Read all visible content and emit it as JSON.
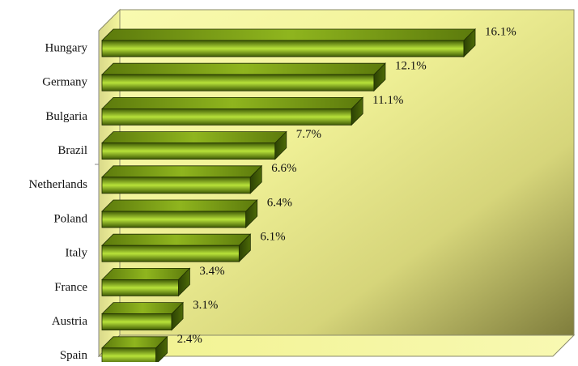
{
  "chart_data": {
    "type": "bar",
    "orientation": "horizontal",
    "categories": [
      "Hungary",
      "Germany",
      "Bulgaria",
      "Brazil",
      "Netherlands",
      "Poland",
      "Italy",
      "France",
      "Austria",
      "Spain"
    ],
    "values": [
      16.1,
      12.1,
      11.1,
      7.7,
      6.6,
      6.4,
      6.1,
      3.4,
      3.1,
      2.4
    ],
    "value_labels": [
      "16.1%",
      "12.1%",
      "11.1%",
      "7.7%",
      "6.6%",
      "6.4%",
      "6.1%",
      "3.4%",
      "3.1%",
      "2.4%"
    ],
    "unit": "%",
    "style": "3d",
    "grid": false,
    "legend": "none",
    "colors": {
      "bar_dark": "#3f5a05",
      "bar_light": "#b8e23a",
      "bar_top": "#6f8f12",
      "bar_side": "#2c4204",
      "bar_outline": "#1f2e02",
      "wall_light": "#f7f8a8",
      "wall_dark": "#8c8a48",
      "floor": "#f4f59c"
    }
  }
}
